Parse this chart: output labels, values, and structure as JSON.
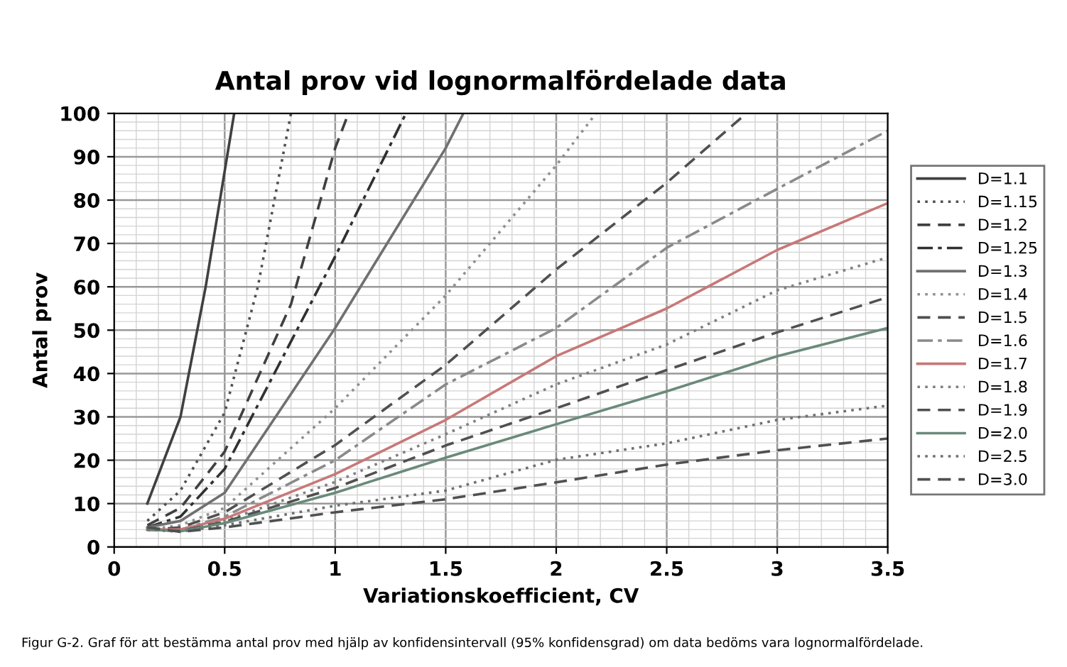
{
  "chart_data": {
    "type": "line",
    "title": "Antal prov vid lognormalfördelade data",
    "xlabel": "Variationskoefficient, CV",
    "ylabel": "Antal prov",
    "xlim": [
      0,
      3.5
    ],
    "xticks": [
      0,
      0.5,
      1,
      1.5,
      2,
      2.5,
      3,
      3.5
    ],
    "ylim": [
      0,
      100
    ],
    "yticks": [
      0,
      10,
      20,
      30,
      40,
      50,
      60,
      70,
      80,
      90,
      100
    ],
    "grid": true,
    "legend": "right",
    "marker": "none",
    "series": [
      {
        "name": "D=1.1",
        "color": "#404040",
        "line_style": "solid",
        "x": [
          0.15,
          0.3,
          0.414,
          0.543
        ],
        "values": [
          10,
          30,
          60,
          100
        ]
      },
      {
        "name": "D=1.15",
        "color": "#505050",
        "line_style": "dotted",
        "x": [
          0.15,
          0.3,
          0.5,
          0.65,
          0.8
        ],
        "values": [
          6,
          13,
          31,
          60,
          100
        ]
      },
      {
        "name": "D=1.2",
        "color": "#404040",
        "line_style": "dashed",
        "x": [
          0.15,
          0.3,
          0.5,
          0.8,
          1,
          1.06
        ],
        "values": [
          5,
          9,
          22,
          56,
          92,
          100
        ]
      },
      {
        "name": "D=1.25",
        "color": "#303030",
        "line_style": "dashdot",
        "x": [
          0.15,
          0.3,
          0.5,
          1,
          1.32
        ],
        "values": [
          4.5,
          7,
          18,
          67,
          100
        ]
      },
      {
        "name": "D=1.3",
        "color": "#707070",
        "line_style": "solid",
        "x": [
          0.15,
          0.3,
          0.5,
          1,
          1.5,
          1.58
        ],
        "values": [
          4.5,
          6,
          12.5,
          50.5,
          92,
          100
        ]
      },
      {
        "name": "D=1.4",
        "color": "#909090",
        "line_style": "dotted",
        "x": [
          0.15,
          0.3,
          0.5,
          1,
          1.5,
          2,
          2.18
        ],
        "values": [
          4,
          5,
          9,
          32,
          58,
          88,
          100
        ]
      },
      {
        "name": "D=1.5",
        "color": "#505050",
        "line_style": "dashed",
        "x": [
          0.15,
          0.3,
          0.5,
          1,
          1.5,
          2,
          2.5,
          2.86
        ],
        "values": [
          4,
          4.5,
          8,
          23.5,
          42,
          64,
          84,
          100
        ]
      },
      {
        "name": "D=1.6",
        "color": "#8a8a8a",
        "line_style": "dashdot",
        "x": [
          0.15,
          0.3,
          0.5,
          1,
          1.5,
          2,
          2.5,
          3,
          3.5
        ],
        "values": [
          4,
          4,
          7,
          20,
          37.5,
          50.5,
          69,
          82.6,
          96
        ]
      },
      {
        "name": "D=1.7",
        "color": "#c87878",
        "line_style": "solid",
        "x": [
          0.15,
          0.3,
          0.5,
          1,
          1.5,
          2,
          2.5,
          3,
          3.5
        ],
        "values": [
          4,
          4,
          6.5,
          16.8,
          29.3,
          44,
          55,
          68.5,
          79.3
        ]
      },
      {
        "name": "D=1.8",
        "color": "#808080",
        "line_style": "dotted",
        "x": [
          0.15,
          0.3,
          0.5,
          1,
          1.5,
          2,
          2.5,
          3,
          3.5
        ],
        "values": [
          4,
          3.8,
          6,
          15,
          26,
          37.5,
          46.7,
          59.2,
          66.8
        ]
      },
      {
        "name": "D=1.9",
        "color": "#505050",
        "line_style": "dashed",
        "x": [
          0.15,
          0.3,
          0.5,
          1,
          1.5,
          2,
          2.5,
          3,
          3.5
        ],
        "values": [
          4,
          3.7,
          5.8,
          13.6,
          23.4,
          32,
          40.8,
          49.5,
          57.6
        ]
      },
      {
        "name": "D=2.0",
        "color": "#6a8a7a",
        "line_style": "solid",
        "x": [
          0.15,
          0.3,
          0.5,
          1,
          1.5,
          2,
          2.5,
          3,
          3.5
        ],
        "values": [
          4,
          3.6,
          5.5,
          12.5,
          20.6,
          28.3,
          35.9,
          44,
          50.5
        ]
      },
      {
        "name": "D=2.5",
        "color": "#707070",
        "line_style": "dotted",
        "x": [
          0.15,
          0.3,
          0.5,
          1,
          1.5,
          2,
          2.5,
          3,
          3.5
        ],
        "values": [
          4,
          3.5,
          5,
          9.5,
          13,
          20.1,
          23.9,
          29.3,
          32.6
        ]
      },
      {
        "name": "D=3.0",
        "color": "#505050",
        "line_style": "dashed",
        "x": [
          0.15,
          0.3,
          0.5,
          1,
          1.5,
          2,
          2.5,
          3,
          3.5
        ],
        "values": [
          4.5,
          3.5,
          4.5,
          8,
          11,
          14.9,
          19,
          22.3,
          25
        ]
      }
    ],
    "annotations": [
      "Figur G-2. Graf för att bestämma antal prov med hjälp av konfidensintervall (95% konfidensgrad) om data bedöms vara lognormalfördelade."
    ]
  }
}
